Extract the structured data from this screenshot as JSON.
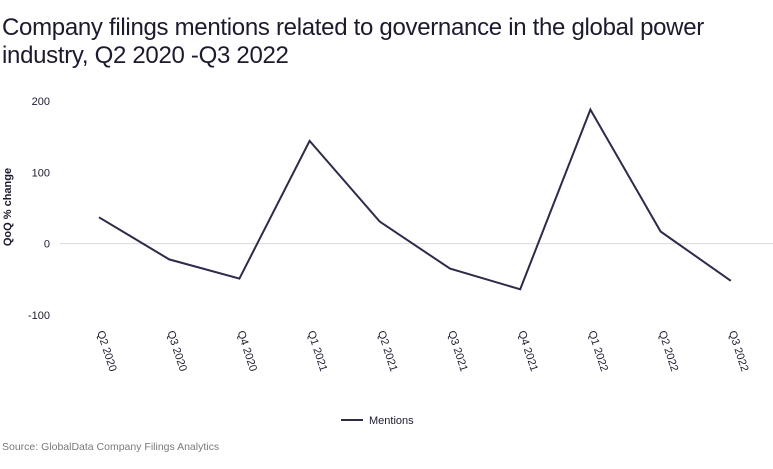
{
  "title": "Company filings mentions related to governance in the global power industry, Q2 2020 -Q3 2022",
  "source": "Source: GlobalData Company Filings Analytics",
  "colors": {
    "line": "#2d2a4a",
    "zero_line": "#d9d9d9",
    "text": "#1c1b2e",
    "source": "#7a7a7a"
  },
  "chart_data": {
    "type": "line",
    "title": "Company filings mentions related to governance in the global power industry, Q2 2020 -Q3 2022",
    "xlabel": "",
    "ylabel": "QoQ % change",
    "categories": [
      "Q2 2020",
      "Q3 2020",
      "Q4 2020",
      "Q1 2021",
      "Q2 2021",
      "Q3 2021",
      "Q4 2021",
      "Q1 2022",
      "Q2 2022",
      "Q3 2022"
    ],
    "series": [
      {
        "name": "Mentions",
        "values": [
          37,
          -22,
          -49,
          144,
          31,
          -35,
          -64,
          188,
          17,
          -52
        ]
      }
    ],
    "ylim": [
      -100,
      200
    ],
    "yticks": [
      -100,
      0,
      100,
      200
    ],
    "ytick_labels": [
      "-100",
      "0",
      "100",
      "200"
    ],
    "grid": false,
    "legend_position": "bottom-center"
  }
}
